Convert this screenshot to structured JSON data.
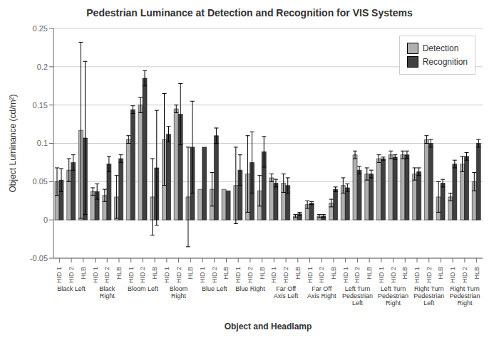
{
  "chart_data": {
    "type": "bar",
    "title": "Pedestrian Luminance at Detection and Recognition for VIS Systems",
    "xlabel": "Object and Headlamp",
    "ylabel": "Object Luminance (cd/m²)",
    "categories": [
      "HID 1",
      "HID 2",
      "HLB",
      "HID 1",
      "HID 2",
      "HLB",
      "HID 1",
      "HID 2",
      "HLB",
      "HID 1",
      "HID 2",
      "HLB",
      "HID 1",
      "HID 2",
      "HLB",
      "HID 1",
      "HID 2",
      "HLB",
      "HID 1",
      "HID 2",
      "HLB",
      "HID 1",
      "HID 2",
      "HLB",
      "HID 1",
      "HID 2",
      "HLB",
      "HID 1",
      "HID 2",
      "HLB",
      "HID 1",
      "HID 2",
      "HLB",
      "HID 1",
      "HID 2",
      "HLB"
    ],
    "annotations": [
      "Black Left",
      "Black\nRight",
      "Bloom Left",
      "Bloom\nRight",
      "Blue Left",
      "Blue Right",
      "Far Off\nAxis Left",
      "Far Off\nAxis Right",
      "Left Turn\nPedestrian\nLeft",
      "Left Turn\nPedestrian\nRight",
      "Right Turn\nPedestrian\nLeft",
      "Right Turn\nPedestrian\nRight"
    ],
    "series": [
      {
        "name": "Detection",
        "color": "#b0b0b0",
        "values": [
          0.05,
          0.065,
          0.117,
          0.037,
          0.032,
          0.03,
          0.105,
          0.15,
          0.03,
          0.105,
          0.145,
          0.03,
          0.04,
          0.04,
          0.04,
          0.045,
          0.06,
          0.038,
          0.055,
          0.048,
          0.005,
          0.02,
          0.005,
          0.022,
          0.045,
          0.085,
          0.06,
          0.08,
          0.085,
          0.085,
          0.06,
          0.105,
          0.03,
          0.03,
          0.073,
          0.05
        ],
        "errors": [
          0.018,
          0.015,
          0.115,
          0.005,
          0.008,
          0.028,
          0.005,
          0.01,
          0.05,
          0.06,
          0.005,
          0.065,
          0,
          0.022,
          0,
          0.05,
          0.05,
          0.02,
          0.005,
          0.012,
          0.002,
          0.005,
          0.002,
          0.005,
          0.01,
          0.005,
          0.008,
          0.005,
          0.005,
          0.005,
          0.008,
          0.005,
          0.02,
          0.005,
          0.01,
          0.012
        ]
      },
      {
        "name": "Recognition",
        "color": "#404040",
        "values": [
          0.052,
          0.075,
          0.107,
          0.037,
          0.073,
          0.08,
          0.144,
          0.185,
          0.068,
          0.112,
          0.138,
          0.095,
          0.095,
          0.11,
          0.038,
          0.065,
          0.075,
          0.089,
          0.048,
          0.045,
          0.008,
          0.022,
          0.005,
          0.04,
          0.042,
          0.065,
          0.06,
          0.08,
          0.082,
          0.085,
          0.063,
          0.1,
          0.048,
          0.073,
          0.083,
          0.1
        ],
        "errors": [
          0.015,
          0.01,
          0.1,
          0.01,
          0.01,
          0.005,
          0.005,
          0.01,
          0.075,
          0.01,
          0.04,
          0.06,
          0,
          0.01,
          0,
          0.02,
          0.04,
          0.02,
          0.005,
          0.01,
          0.002,
          0.002,
          0.002,
          0.003,
          0.005,
          0.005,
          0.005,
          0.002,
          0.003,
          0.005,
          0.005,
          0.005,
          0.005,
          0.005,
          0.005,
          0.005
        ]
      }
    ],
    "ylim": [
      -0.05,
      0.25
    ],
    "yticks": [
      -0.05,
      0,
      0.05,
      0.1,
      0.15,
      0.2,
      0.25
    ],
    "grid": true,
    "legend": "upper right"
  }
}
